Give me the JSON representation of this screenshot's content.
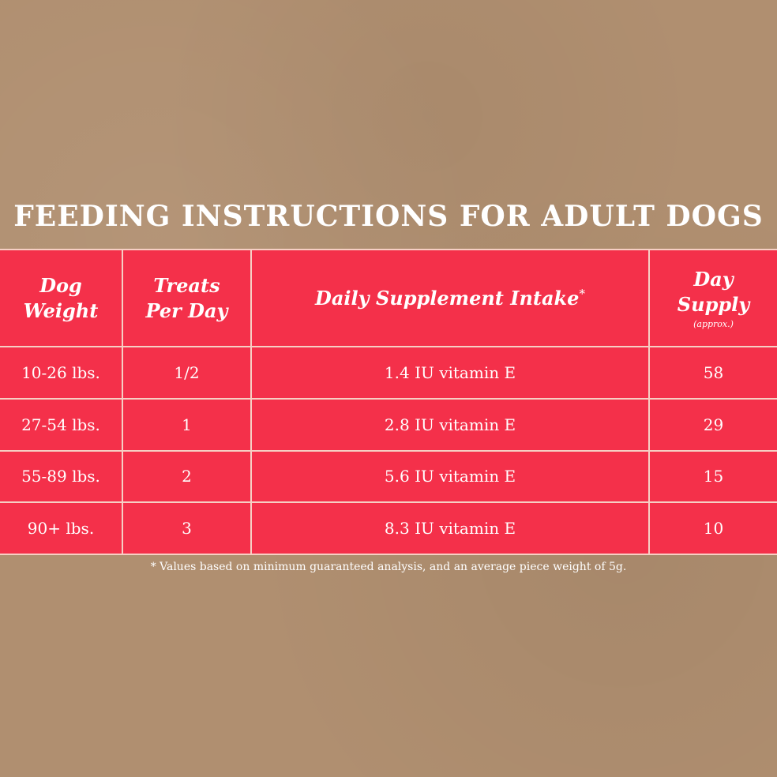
{
  "title": "FEEDING INSTRUCTIONS FOR ADULT DOGS",
  "colors": {
    "background": "#b08f70",
    "table_fill": "#f4304a",
    "grid_line": "#f6cfc4",
    "text": "#ffffff"
  },
  "table": {
    "headers": {
      "weight": {
        "line1": "Dog",
        "line2": "Weight"
      },
      "treats": {
        "line1": "Treats",
        "line2": "Per Day"
      },
      "intake": {
        "text": "Daily Supplement Intake",
        "mark": "*"
      },
      "supply": {
        "line1": "Day",
        "line2": "Supply",
        "note": "(approx.)"
      }
    },
    "rows": [
      {
        "weight": "10-26 lbs.",
        "treats": "1/2",
        "intake": "1.4 IU vitamin E",
        "supply": "58"
      },
      {
        "weight": "27-54 lbs.",
        "treats": "1",
        "intake": "2.8 IU vitamin E",
        "supply": "29"
      },
      {
        "weight": "55-89 lbs.",
        "treats": "2",
        "intake": "5.6 IU vitamin E",
        "supply": "15"
      },
      {
        "weight": "90+ lbs.",
        "treats": "3",
        "intake": "8.3 IU vitamin E",
        "supply": "10"
      }
    ]
  },
  "footnote": "* Values based on minimum guaranteed analysis, and an average piece weight of 5g."
}
